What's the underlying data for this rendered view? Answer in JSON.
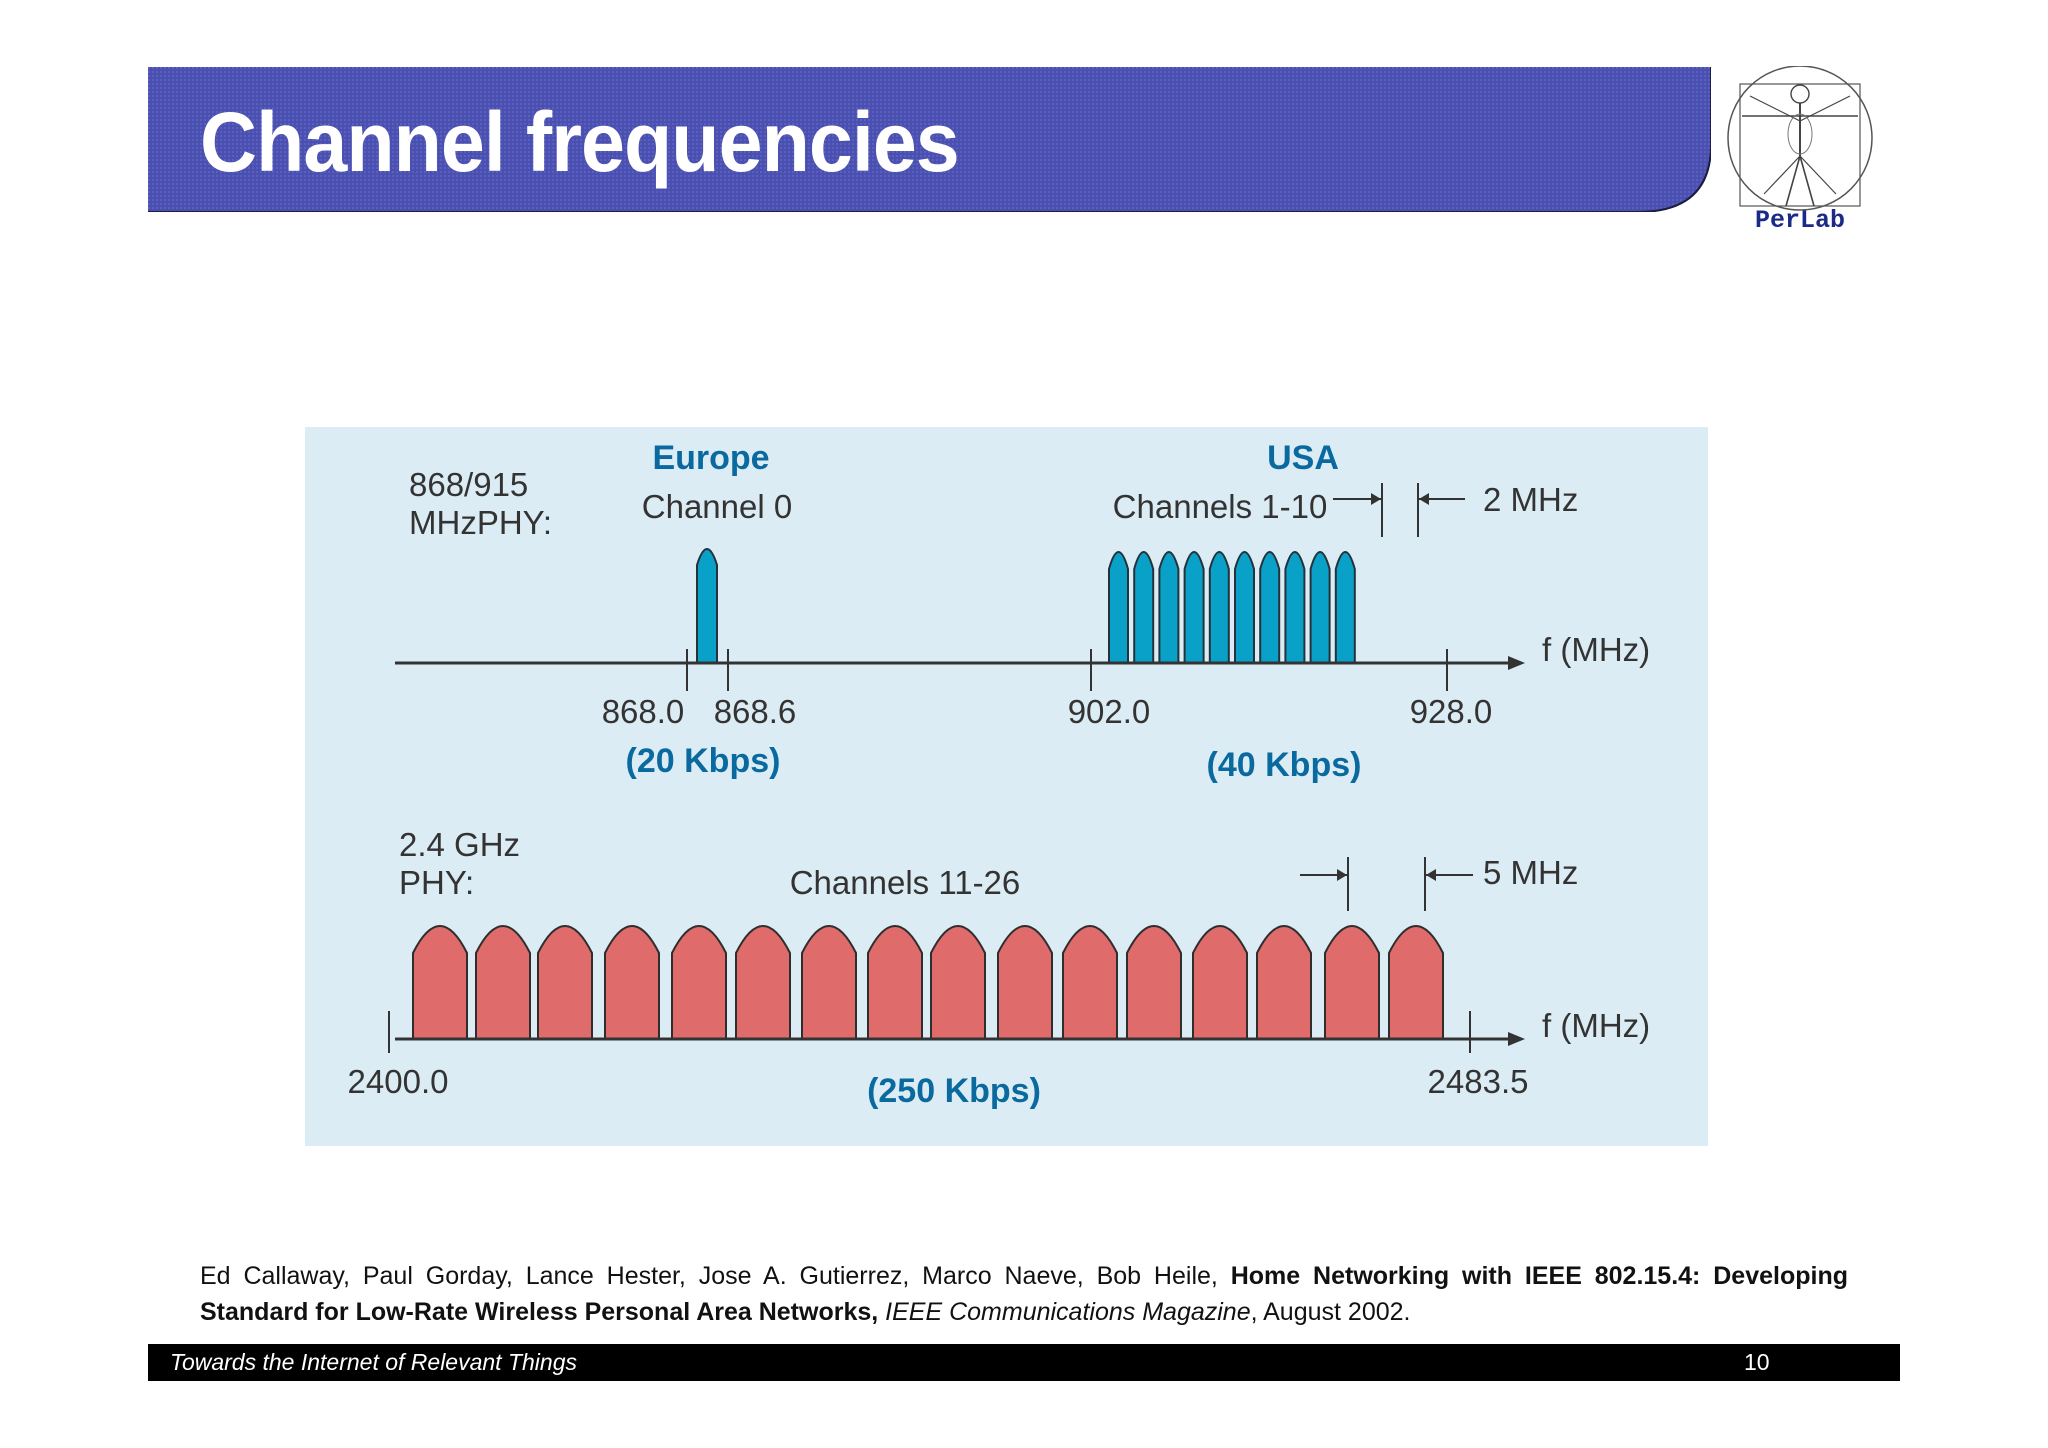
{
  "slide": {
    "title": "Channel frequencies",
    "logo_text": "PerLab"
  },
  "figure": {
    "top": {
      "phy_label": [
        "868/915",
        "MHzPHY:"
      ],
      "europe": {
        "region": "Europe",
        "channel_label": "Channel 0",
        "ticks": [
          "868.0",
          "868.6"
        ],
        "rate": "(20 Kbps)"
      },
      "usa": {
        "region": "USA",
        "channel_label": "Channels 1-10",
        "spacing": "2 MHz",
        "ticks": [
          "902.0",
          "928.0"
        ],
        "rate": "(40 Kbps)"
      },
      "axis_label": "f (MHz)"
    },
    "bottom": {
      "phy_label": [
        "2.4 GHz",
        "PHY:"
      ],
      "channel_label": "Channels 11-26",
      "spacing": "5 MHz",
      "ticks": [
        "2400.0",
        "2483.5"
      ],
      "rate": "(250 Kbps)",
      "axis_label": "f (MHz)"
    },
    "colors": {
      "background": "#dcecf4",
      "region_text": "#0a6aa0",
      "narrow_channel": "#0aa1c8",
      "wide_channel": "#e06b6b",
      "axis": "#333333"
    },
    "channel_counts": {
      "europe": 1,
      "usa": 10,
      "ghz": 16
    }
  },
  "citation": {
    "authors": "Ed Callaway, Paul Gorday, Lance Hester, Jose A. Gutierrez, Marco Naeve, Bob Heile, ",
    "title": "Home Networking with IEEE 802.15.4:  Developing Standard for Low-Rate Wireless Personal Area Networks,",
    "journal": "IEEE Communications Magazine",
    "date": ", August 2002."
  },
  "footer": {
    "tagline": "Towards the Internet of Relevant Things",
    "page": "10"
  }
}
